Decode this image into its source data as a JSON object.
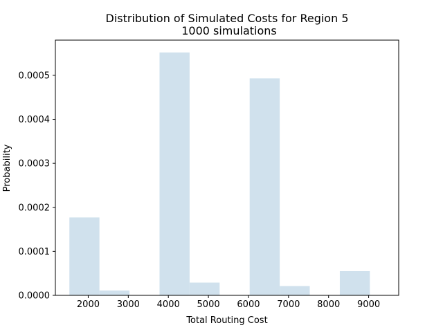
{
  "chart_data": {
    "type": "bar",
    "title": "Distribution of Simulated Costs for Region 5",
    "subtitle": "1000 simulations",
    "xlabel": "Total Routing Cost",
    "ylabel": "Probability",
    "xlim": [
      1180,
      9750
    ],
    "ylim": [
      0,
      0.00058
    ],
    "x_ticks": [
      2000,
      3000,
      4000,
      5000,
      6000,
      7000,
      8000,
      9000
    ],
    "x_tick_labels": [
      "2000",
      "3000",
      "4000",
      "5000",
      "6000",
      "7000",
      "8000",
      "9000"
    ],
    "y_ticks": [
      0,
      0.0001,
      0.0002,
      0.0003,
      0.0004,
      0.0005
    ],
    "y_tick_labels": [
      "0.0000",
      "0.0001",
      "0.0002",
      "0.0003",
      "0.0004",
      "0.0005"
    ],
    "bins": [
      {
        "x0": 1530,
        "x1": 2280,
        "value": 0.000177
      },
      {
        "x0": 2280,
        "x1": 3030,
        "value": 1.1e-05
      },
      {
        "x0": 3030,
        "x1": 3780,
        "value": 0.0
      },
      {
        "x0": 3780,
        "x1": 4530,
        "value": 0.000552
      },
      {
        "x0": 4530,
        "x1": 5280,
        "value": 2.9e-05
      },
      {
        "x0": 5280,
        "x1": 6030,
        "value": 0.0
      },
      {
        "x0": 6030,
        "x1": 6780,
        "value": 0.000493
      },
      {
        "x0": 6780,
        "x1": 7530,
        "value": 2.1e-05
      },
      {
        "x0": 7530,
        "x1": 8280,
        "value": 0.0
      },
      {
        "x0": 8280,
        "x1": 9030,
        "value": 5.5e-05
      }
    ],
    "bar_color": "#d0e1ed",
    "grid": false
  }
}
